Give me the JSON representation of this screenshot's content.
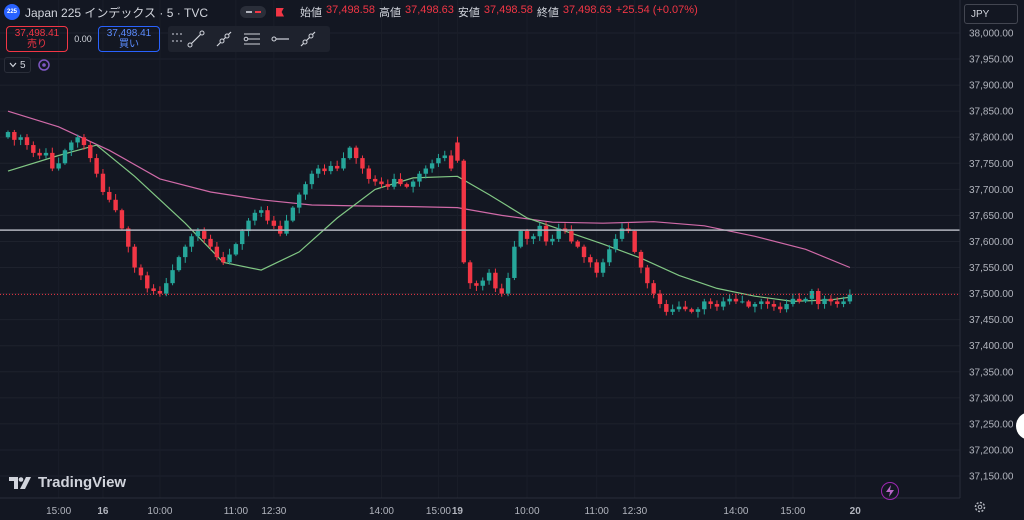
{
  "header": {
    "badge": "225",
    "title": "Japan 225 インデックス · 5 · TVC",
    "ohlc": [
      {
        "label": "始値",
        "value": "37,498.58"
      },
      {
        "label": "高値",
        "value": "37,498.63"
      },
      {
        "label": "安値",
        "value": "37,498.58"
      },
      {
        "label": "終値",
        "value": "37,498.63"
      },
      {
        "label": "",
        "value": "+25.54 (+0.07%)"
      }
    ]
  },
  "trade": {
    "sell_price": "37,498.41",
    "sell_label": "売り",
    "spread": "0.00",
    "buy_price": "37,498.41",
    "buy_label": "買い"
  },
  "interval": "5",
  "currency": "JPY",
  "brand": "TradingView",
  "icons": [
    "grip-icon",
    "trend-line-icon",
    "ray-icon",
    "parallel-channel-icon",
    "horizontal-ray-icon",
    "extended-line-icon",
    "chevron-down-icon",
    "indicator-icon",
    "flash-icon",
    "gear-icon"
  ],
  "colors": {
    "up": "#26a69a",
    "down": "#f23645",
    "ma_fast": "#81c784",
    "ma_slow": "#d06aa8",
    "background": "#131722"
  },
  "chart_data": {
    "type": "candlestick",
    "y_range": [
      37125,
      38025
    ],
    "y_ticks": [
      "38,000.00",
      "37,950.00",
      "37,900.00",
      "37,850.00",
      "37,800.00",
      "37,750.00",
      "37,700.00",
      "37,650.00",
      "37,600.00",
      "37,550.00",
      "37,500.00",
      "37,450.00",
      "37,400.00",
      "37,350.00",
      "37,300.00",
      "37,250.00",
      "37,200.00",
      "37,150.00"
    ],
    "x_ticks": [
      "15:00",
      "16",
      "10:00",
      "11:00",
      "12:30",
      "14:00",
      "15:00",
      "19",
      "10:00",
      "11:00",
      "12:30",
      "14:00",
      "15:00",
      "20"
    ],
    "price_labels": [
      {
        "value": 37621.77,
        "text": "37,621.77",
        "kind": "level"
      },
      {
        "value": 37498.63,
        "text": "37,498.63",
        "kind": "last"
      }
    ],
    "candle_closes": [
      37810,
      37795,
      37800,
      37785,
      37770,
      37765,
      37770,
      37740,
      37750,
      37775,
      37790,
      37800,
      37785,
      37760,
      37730,
      37695,
      37680,
      37660,
      37625,
      37590,
      37550,
      37535,
      37510,
      37505,
      37500,
      37520,
      37545,
      37570,
      37590,
      37610,
      37620,
      37605,
      37590,
      37570,
      37560,
      37575,
      37595,
      37620,
      37640,
      37655,
      37660,
      37640,
      37630,
      37615,
      37640,
      37665,
      37690,
      37710,
      37730,
      37740,
      37735,
      37745,
      37740,
      37760,
      37780,
      37760,
      37740,
      37720,
      37715,
      37710,
      37705,
      37720,
      37710,
      37705,
      37715,
      37730,
      37740,
      37750,
      37760,
      37765,
      37740,
      37755,
      37560,
      37520,
      37515,
      37525,
      37540,
      37510,
      37500,
      37530,
      37590,
      37620,
      37605,
      37610,
      37630,
      37600,
      37605,
      37625,
      37620,
      37600,
      37590,
      37570,
      37560,
      37540,
      37560,
      37585,
      37605,
      37625,
      37620,
      37580,
      37550,
      37520,
      37500,
      37480,
      37465,
      37470,
      37475,
      37470,
      37465,
      37470,
      37485,
      37480,
      37475,
      37485,
      37490,
      37485,
      37485,
      37475,
      37480,
      37485,
      37480,
      37475,
      37470,
      37480,
      37490,
      37485,
      37490,
      37505,
      37480,
      37490,
      37485,
      37480,
      37485,
      37498
    ],
    "session_breaks": [
      71
    ],
    "ma_fast": [
      {
        "i": 0,
        "v": 37735
      },
      {
        "i": 8,
        "v": 37765
      },
      {
        "i": 14,
        "v": 37785
      },
      {
        "i": 20,
        "v": 37725
      },
      {
        "i": 28,
        "v": 37635
      },
      {
        "i": 34,
        "v": 37560
      },
      {
        "i": 40,
        "v": 37545
      },
      {
        "i": 46,
        "v": 37580
      },
      {
        "i": 52,
        "v": 37645
      },
      {
        "i": 58,
        "v": 37700
      },
      {
        "i": 64,
        "v": 37722
      },
      {
        "i": 71,
        "v": 37725
      },
      {
        "i": 76,
        "v": 37690
      },
      {
        "i": 82,
        "v": 37645
      },
      {
        "i": 88,
        "v": 37620
      },
      {
        "i": 94,
        "v": 37595
      },
      {
        "i": 100,
        "v": 37568
      },
      {
        "i": 106,
        "v": 37535
      },
      {
        "i": 112,
        "v": 37510
      },
      {
        "i": 118,
        "v": 37495
      },
      {
        "i": 124,
        "v": 37485
      },
      {
        "i": 130,
        "v": 37488
      },
      {
        "i": 133,
        "v": 37493
      }
    ],
    "ma_slow": [
      {
        "i": 0,
        "v": 37850
      },
      {
        "i": 8,
        "v": 37820
      },
      {
        "i": 16,
        "v": 37775
      },
      {
        "i": 24,
        "v": 37720
      },
      {
        "i": 32,
        "v": 37695
      },
      {
        "i": 40,
        "v": 37680
      },
      {
        "i": 48,
        "v": 37670
      },
      {
        "i": 56,
        "v": 37668
      },
      {
        "i": 64,
        "v": 37667
      },
      {
        "i": 71,
        "v": 37665
      },
      {
        "i": 78,
        "v": 37650
      },
      {
        "i": 86,
        "v": 37637
      },
      {
        "i": 94,
        "v": 37635
      },
      {
        "i": 102,
        "v": 37638
      },
      {
        "i": 110,
        "v": 37630
      },
      {
        "i": 118,
        "v": 37610
      },
      {
        "i": 126,
        "v": 37585
      },
      {
        "i": 133,
        "v": 37550
      }
    ]
  }
}
